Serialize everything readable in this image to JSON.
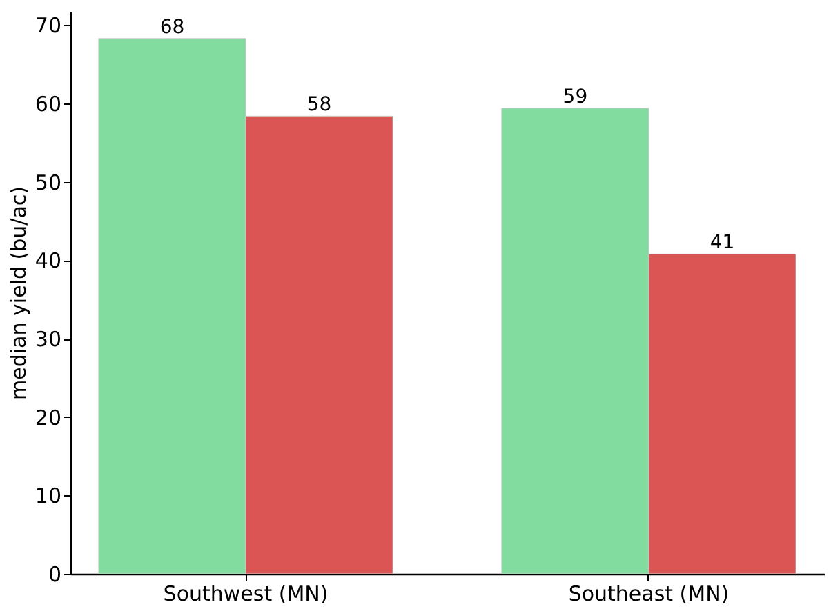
{
  "chart_data": {
    "type": "bar",
    "ylabel": "median yield (bu/ac)",
    "categories": [
      "Southwest (MN)",
      "Southeast (MN)"
    ],
    "series": [
      {
        "color": "#82db9f",
        "values": [
          68.3,
          59.4
        ],
        "value_labels": [
          "68",
          "59"
        ]
      },
      {
        "color": "#dc5555",
        "values": [
          58.4,
          40.8
        ],
        "value_labels": [
          "58",
          "41"
        ]
      }
    ],
    "ylim": [
      0,
      71.8
    ],
    "yticks": [
      0,
      10,
      20,
      30,
      40,
      50,
      60,
      70
    ],
    "grid": false,
    "legend": false
  }
}
